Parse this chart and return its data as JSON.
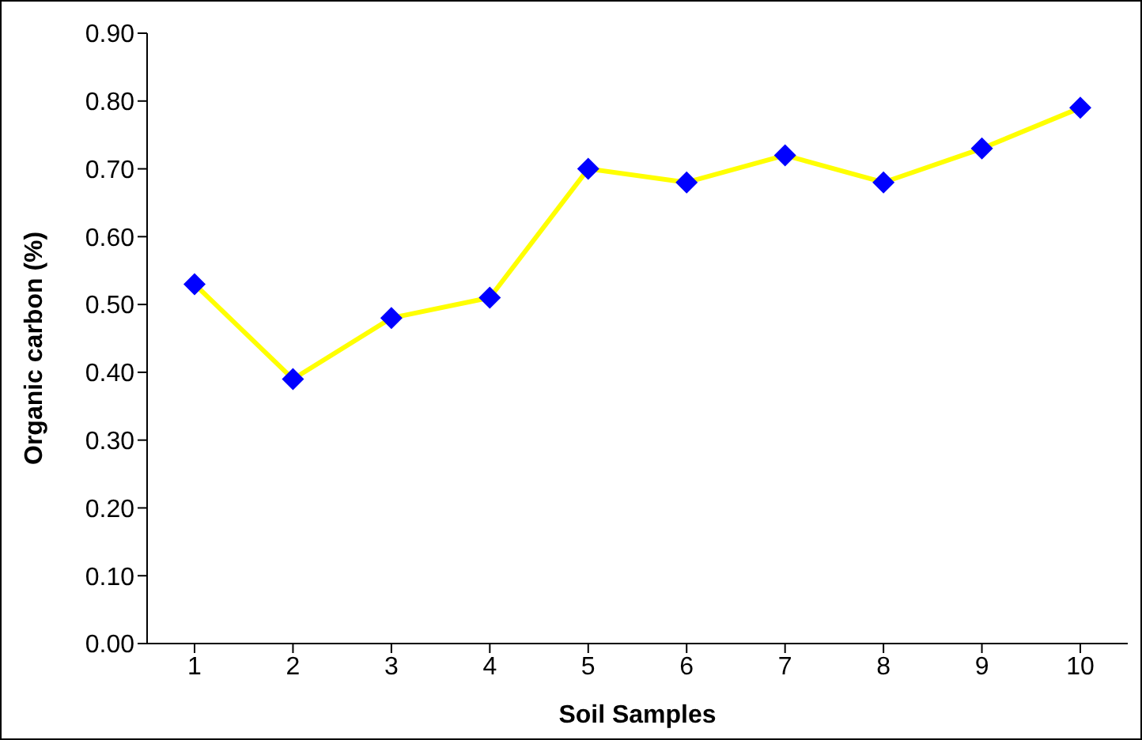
{
  "chart_data": {
    "type": "line",
    "xlabel": "Soil Samples",
    "ylabel": "Organic carbon (%)",
    "categories": [
      "1",
      "2",
      "3",
      "4",
      "5",
      "6",
      "7",
      "8",
      "9",
      "10"
    ],
    "series": [
      {
        "marker": "none",
        "color": "#ffff00",
        "values": [
          0.53,
          0.39,
          0.48,
          0.51,
          0.7,
          0.68,
          0.72,
          0.68,
          0.73,
          0.79
        ]
      },
      {
        "type": "scatter",
        "marker": "diamond",
        "color": "#0000ff",
        "values": [
          0.53,
          0.39,
          0.48,
          0.51,
          0.7,
          0.68,
          0.72,
          0.68,
          0.73,
          0.79
        ]
      }
    ],
    "ylim": [
      0,
      0.9
    ],
    "yticks": [
      {
        "value": 0,
        "label": "0.00"
      },
      {
        "value": 0.1,
        "label": "0.10"
      },
      {
        "value": 0.2,
        "label": "0.20"
      },
      {
        "value": 0.3,
        "label": "0.30"
      },
      {
        "value": 0.4,
        "label": "0.40"
      },
      {
        "value": 0.5,
        "label": "0.50"
      },
      {
        "value": 0.6,
        "label": "0.60"
      },
      {
        "value": 0.7,
        "label": "0.70"
      },
      {
        "value": 0.8,
        "label": "0.80"
      },
      {
        "value": 0.9,
        "label": "0.90"
      }
    ],
    "grid": false,
    "legend": false
  }
}
